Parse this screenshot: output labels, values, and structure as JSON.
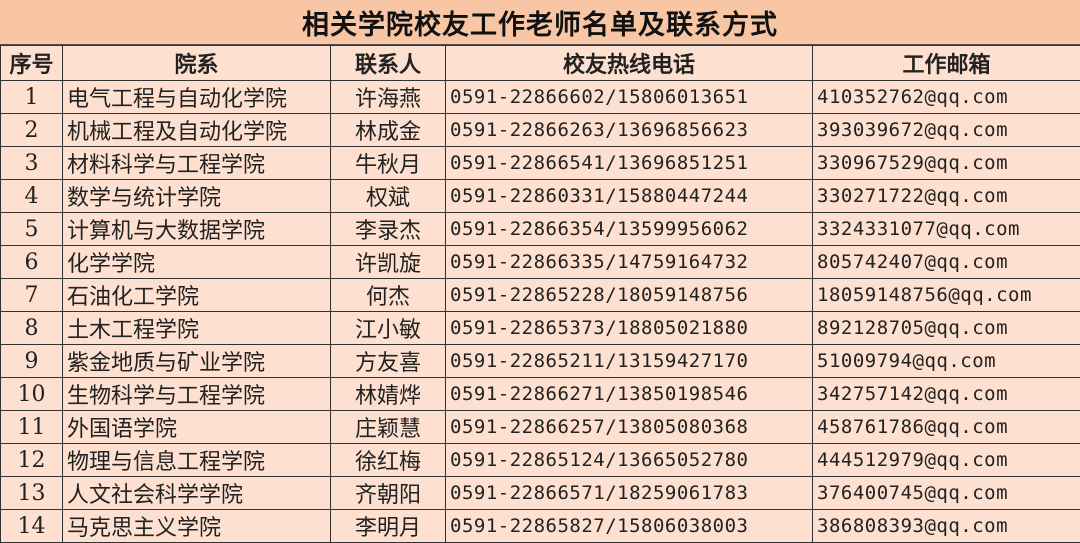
{
  "title": "相关学院校友工作老师名单及联系方式",
  "colors": {
    "title_bg": "#f8c6a5",
    "row_bg": "#fde0cf",
    "border": "#333333"
  },
  "headers": [
    "序号",
    "院系",
    "联系人",
    "校友热线电话",
    "工作邮箱"
  ],
  "rows": [
    [
      "1",
      "电气工程与自动化学院",
      "许海燕",
      "0591-22866602/15806013651",
      "410352762@qq.com"
    ],
    [
      "2",
      "机械工程及自动化学院",
      "林成金",
      "0591-22866263/13696856623",
      "393039672@qq.com"
    ],
    [
      "3",
      "材料科学与工程学院",
      "牛秋月",
      "0591-22866541/13696851251",
      "330967529@qq.com"
    ],
    [
      "4",
      "数学与统计学院",
      "权斌",
      "0591-22860331/15880447244",
      "330271722@qq.com"
    ],
    [
      "5",
      "计算机与大数据学院",
      "李录杰",
      "0591-22866354/13599956062",
      "3324331077@qq.com"
    ],
    [
      "6",
      "化学学院",
      "许凯旋",
      "0591-22866335/14759164732",
      "805742407@qq.com"
    ],
    [
      "7",
      "石油化工学院",
      "何杰",
      "0591-22865228/18059148756",
      "18059148756@qq.com"
    ],
    [
      "8",
      "土木工程学院",
      "江小敏",
      "0591-22865373/18805021880",
      "892128705@qq.com"
    ],
    [
      "9",
      "紫金地质与矿业学院",
      "方友喜",
      "0591-22865211/13159427170",
      "51009794@qq.com"
    ],
    [
      "10",
      "生物科学与工程学院",
      "林婧烨",
      "0591-22866271/13850198546",
      "342757142@qq.com"
    ],
    [
      "11",
      "外国语学院",
      "庄颖慧",
      "0591-22866257/13805080368",
      "458761786@qq.com"
    ],
    [
      "12",
      "物理与信息工程学院",
      "徐红梅",
      "0591-22865124/13665052780",
      "444512979@qq.com"
    ],
    [
      "13",
      "人文社会科学学院",
      "齐朝阳",
      "0591-22866571/18259061783",
      "376400745@qq.com"
    ],
    [
      "14",
      "马克思主义学院",
      "李明月",
      "0591-22865827/15806038003",
      "386808393@qq.com"
    ]
  ]
}
